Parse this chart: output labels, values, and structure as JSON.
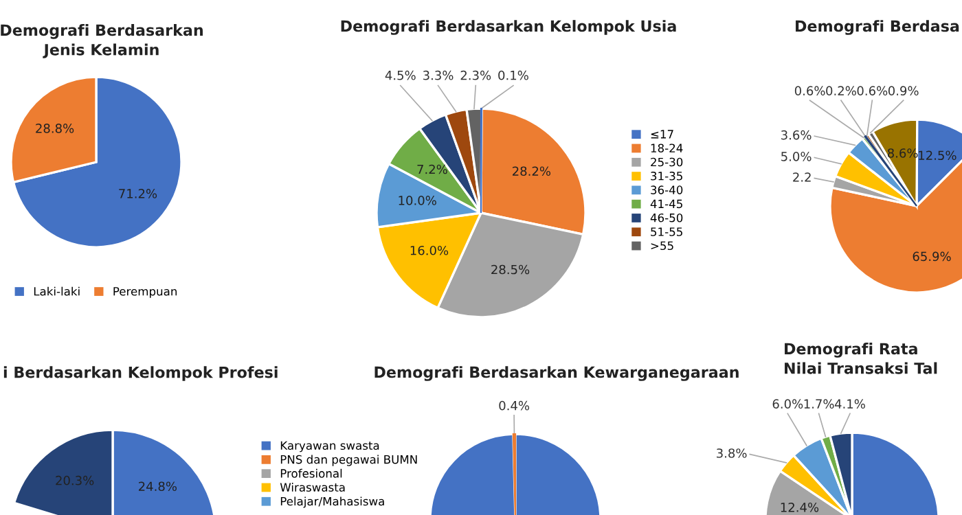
{
  "chart_data": [
    {
      "type": "pie",
      "title": "Demografi Berdasarkan\nJenis Kelamin",
      "categories": [
        "Laki-laki",
        "Perempuan"
      ],
      "values": [
        71.2,
        28.8
      ],
      "colors": [
        "#4472c4",
        "#ed7d31"
      ],
      "value_labels": [
        "71.2%",
        "28.8%"
      ],
      "legend": "bottom"
    },
    {
      "type": "pie",
      "title": "Demografi Berdasarkan Kelompok Usia",
      "categories": [
        "≤17",
        "18-24",
        "25-30",
        "31-35",
        "36-40",
        "41-45",
        "46-50",
        "51-55",
        ">55"
      ],
      "values": [
        0.1,
        28.2,
        28.5,
        16.0,
        10.0,
        7.2,
        4.5,
        3.3,
        2.3
      ],
      "colors": [
        "#4472c4",
        "#ed7d31",
        "#a5a5a5",
        "#ffc000",
        "#5b9bd5",
        "#70ad47",
        "#264478",
        "#9e480e",
        "#636363"
      ],
      "value_labels": [
        "0.1%",
        "28.2%",
        "28.5%",
        "16.0%",
        "10.0%",
        "7.2%",
        "4.5%",
        "3.3%",
        "2.3%"
      ],
      "legend": "right"
    },
    {
      "type": "pie",
      "title": "Demografi Berdasa",
      "categories": [
        null,
        null,
        null,
        null,
        null,
        null,
        null,
        null,
        null,
        null
      ],
      "values": [
        12.5,
        65.9,
        2.2,
        5.0,
        3.6,
        0.6,
        0.2,
        0.6,
        0.9,
        8.6
      ],
      "colors": [
        "#4472c4",
        "#ed7d31",
        "#a5a5a5",
        "#ffc000",
        "#5b9bd5",
        "#70ad47",
        "#264478",
        "#9e480e",
        "#636363",
        "#997300"
      ],
      "value_labels": [
        "12.5%",
        "65.9%",
        "2.2",
        "5.0%",
        "3.6%",
        "0.6%",
        "0.2%",
        "0.6%",
        "0.9%",
        "8.6%"
      ]
    },
    {
      "type": "pie",
      "title": "i Berdasarkan Kelompok Profesi",
      "categories": [
        "Karyawan swasta",
        "PNS dan pegawai BUMN",
        "Profesional",
        "Wiraswasta",
        "Pelajar/Mahasiswa",
        null,
        null
      ],
      "values": [
        24.8,
        null,
        null,
        null,
        null,
        null,
        20.3
      ],
      "colors": [
        "#4472c4",
        "#ed7d31",
        "#a5a5a5",
        "#ffc000",
        "#5b9bd5",
        "#70ad47",
        "#264478"
      ],
      "value_labels": [
        "24.8%",
        null,
        null,
        null,
        null,
        null,
        "20.3%"
      ],
      "legend": "right"
    },
    {
      "type": "pie",
      "title": "Demografi Berdasarkan Kewarganegaraan",
      "categories": [
        null,
        null
      ],
      "values": [
        99.6,
        0.4
      ],
      "colors": [
        "#4472c4",
        "#ed7d31"
      ],
      "value_labels": [
        null,
        "0.4%"
      ]
    },
    {
      "type": "pie",
      "title": "Demografi Rata\nNilai Transaksi Tal",
      "categories": [
        null,
        null,
        null,
        null,
        null,
        null
      ],
      "values": [
        72.0,
        12.4,
        3.8,
        6.0,
        1.7,
        4.1
      ],
      "colors": [
        "#4472c4",
        "#a5a5a5",
        "#ffc000",
        "#5b9bd5",
        "#70ad47",
        "#264478"
      ],
      "value_labels": [
        null,
        "12.4%",
        "3.8%",
        "6.0%",
        "1.7%",
        "4.1%"
      ]
    }
  ]
}
